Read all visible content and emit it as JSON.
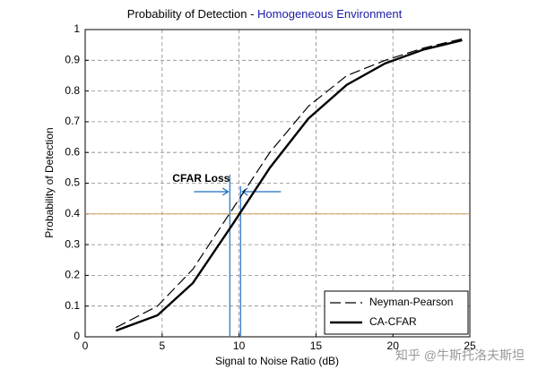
{
  "chart_data": {
    "type": "line",
    "title_parts": [
      "Probability of Detection -",
      "Homogeneous Environment"
    ],
    "title_colors": [
      "#000000",
      "#1a1aa6"
    ],
    "xlabel": "Signal to Noise Ratio (dB)",
    "ylabel": "Probability of Detection",
    "x": [
      2,
      4.7,
      7,
      9.5,
      12,
      14.5,
      17,
      19.5,
      22,
      24.5
    ],
    "series": [
      {
        "name": "Neyman-Pearson",
        "color": "#000000",
        "style": "dashed",
        "values": [
          0.03,
          0.1,
          0.22,
          0.41,
          0.6,
          0.75,
          0.85,
          0.9,
          0.94,
          0.97
        ]
      },
      {
        "name": "CA-CFAR",
        "color": "#000000",
        "style": "solid",
        "values": [
          0.02,
          0.07,
          0.175,
          0.36,
          0.55,
          0.71,
          0.82,
          0.89,
          0.935,
          0.965
        ]
      }
    ],
    "xlim": [
      0,
      25
    ],
    "xticks": [
      0,
      5,
      10,
      15,
      20,
      25
    ],
    "ylim": [
      0,
      1
    ],
    "yticks": [
      0,
      0.1,
      0.2,
      0.3,
      0.4,
      0.5,
      0.6,
      0.7,
      0.8,
      0.9,
      1
    ],
    "grid": true,
    "legend": "lower right",
    "annotation": {
      "text": "CFAR Loss",
      "color": "#1f6fc4",
      "threshold": 0.4,
      "threshold_color": "#d9a060",
      "loss_x": [
        9.4,
        10.1
      ]
    },
    "watermark": "知乎 @牛斯托洛夫斯坦"
  }
}
